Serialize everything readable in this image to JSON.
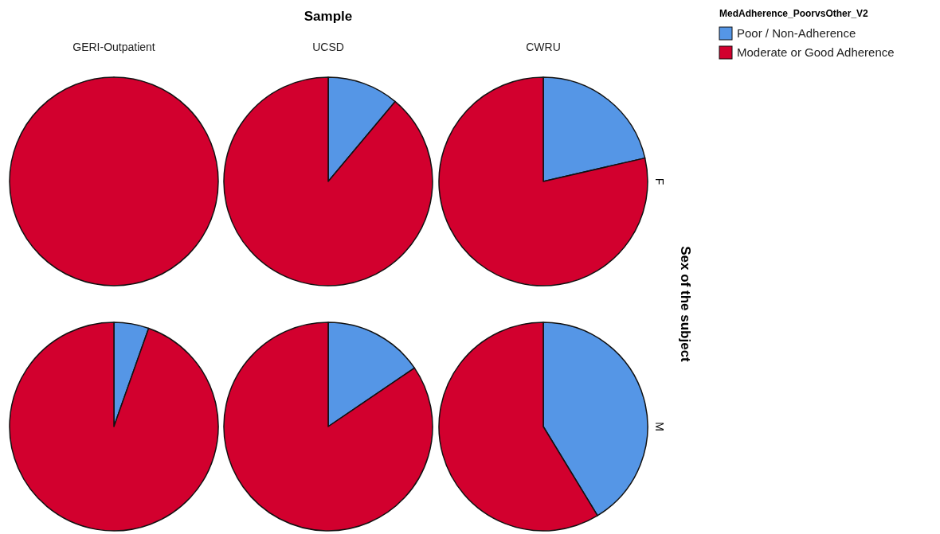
{
  "chart_data": [
    {
      "type": "pie",
      "subtitle": "GERI-Outpatient",
      "categories": [
        null,
        null
      ],
      "values": [
        0,
        100
      ],
      "colors": [
        "#5596e6",
        "#d2002e"
      ]
    },
    {
      "type": "pie",
      "title": "Sample",
      "subtitle": "UCSD",
      "categories": [
        null,
        null
      ],
      "values": [
        11.1,
        88.9
      ],
      "colors": [
        "#5596e6",
        "#d2002e"
      ]
    },
    {
      "type": "pie",
      "subtitle": "CWRU",
      "ylabel": "F",
      "y2label": "Sex of the subject",
      "legend": "top right",
      "legend_title": "MedAdherence_PoorvsOther_V2",
      "categories": [
        "Poor / Non-Adherence",
        "Moderate or Good Adherence"
      ],
      "values": [
        21.4,
        78.6
      ],
      "colors": [
        "#5596e6",
        "#d2002e"
      ]
    },
    {
      "type": "pie",
      "categories": [
        null,
        null
      ],
      "values": [
        5.4,
        94.6
      ],
      "colors": [
        "#5596e6",
        "#d2002e"
      ]
    },
    {
      "type": "pie",
      "categories": [
        null,
        null
      ],
      "values": [
        15.5,
        84.5
      ],
      "colors": [
        "#5596e6",
        "#d2002e"
      ]
    },
    {
      "type": "pie",
      "ylabel": "M",
      "categories": [
        null,
        null
      ],
      "values": [
        41.3,
        58.7
      ],
      "colors": [
        "#5596e6",
        "#d2002e"
      ]
    }
  ]
}
